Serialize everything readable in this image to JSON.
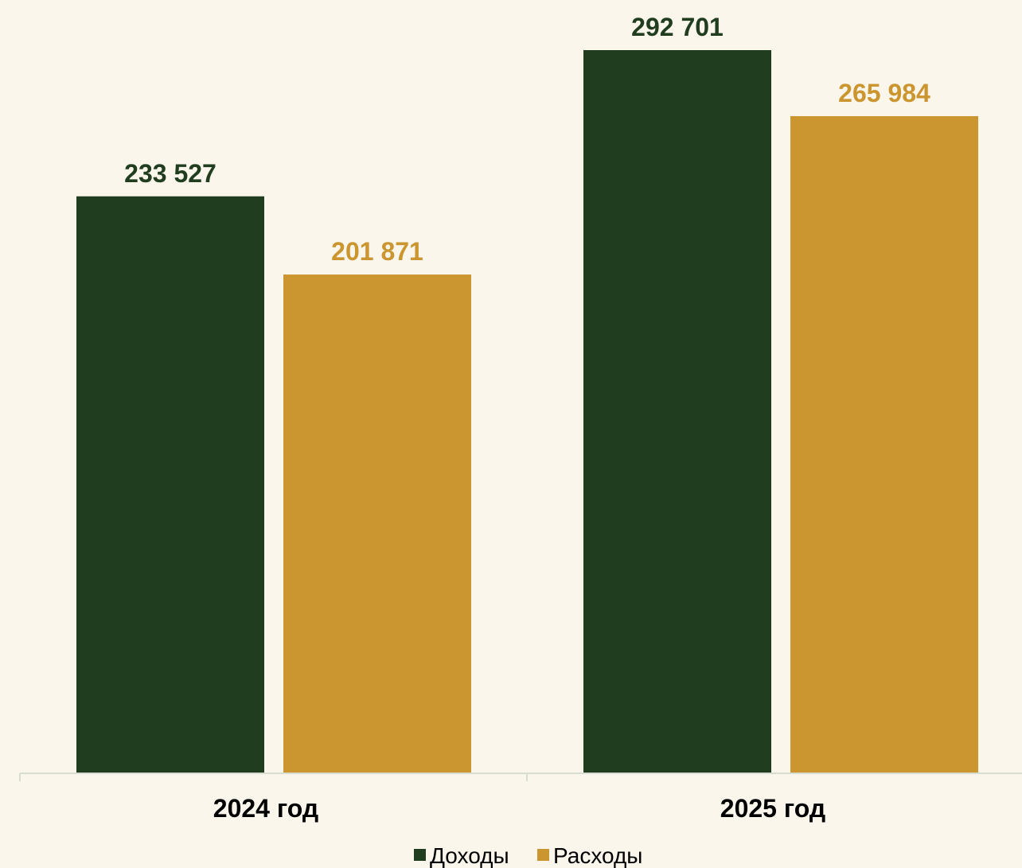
{
  "chart_data": {
    "type": "bar",
    "categories": [
      "2024 год",
      "2025 год"
    ],
    "series": [
      {
        "name": "Доходы",
        "values": [
          233527,
          292701
        ],
        "color": "#213D20"
      },
      {
        "name": "Расходы",
        "values": [
          201871,
          265984
        ],
        "color": "#CB952F"
      }
    ],
    "value_labels": [
      [
        "233 527",
        "292 701"
      ],
      [
        "201 871",
        "265 984"
      ]
    ],
    "title": "",
    "xlabel": "",
    "ylabel": "",
    "ylim": [
      0,
      292701
    ],
    "grid": false,
    "legend": "bottom-center"
  },
  "colors": {
    "background": "#FAF6EC",
    "axis": "#D8DDD2"
  }
}
